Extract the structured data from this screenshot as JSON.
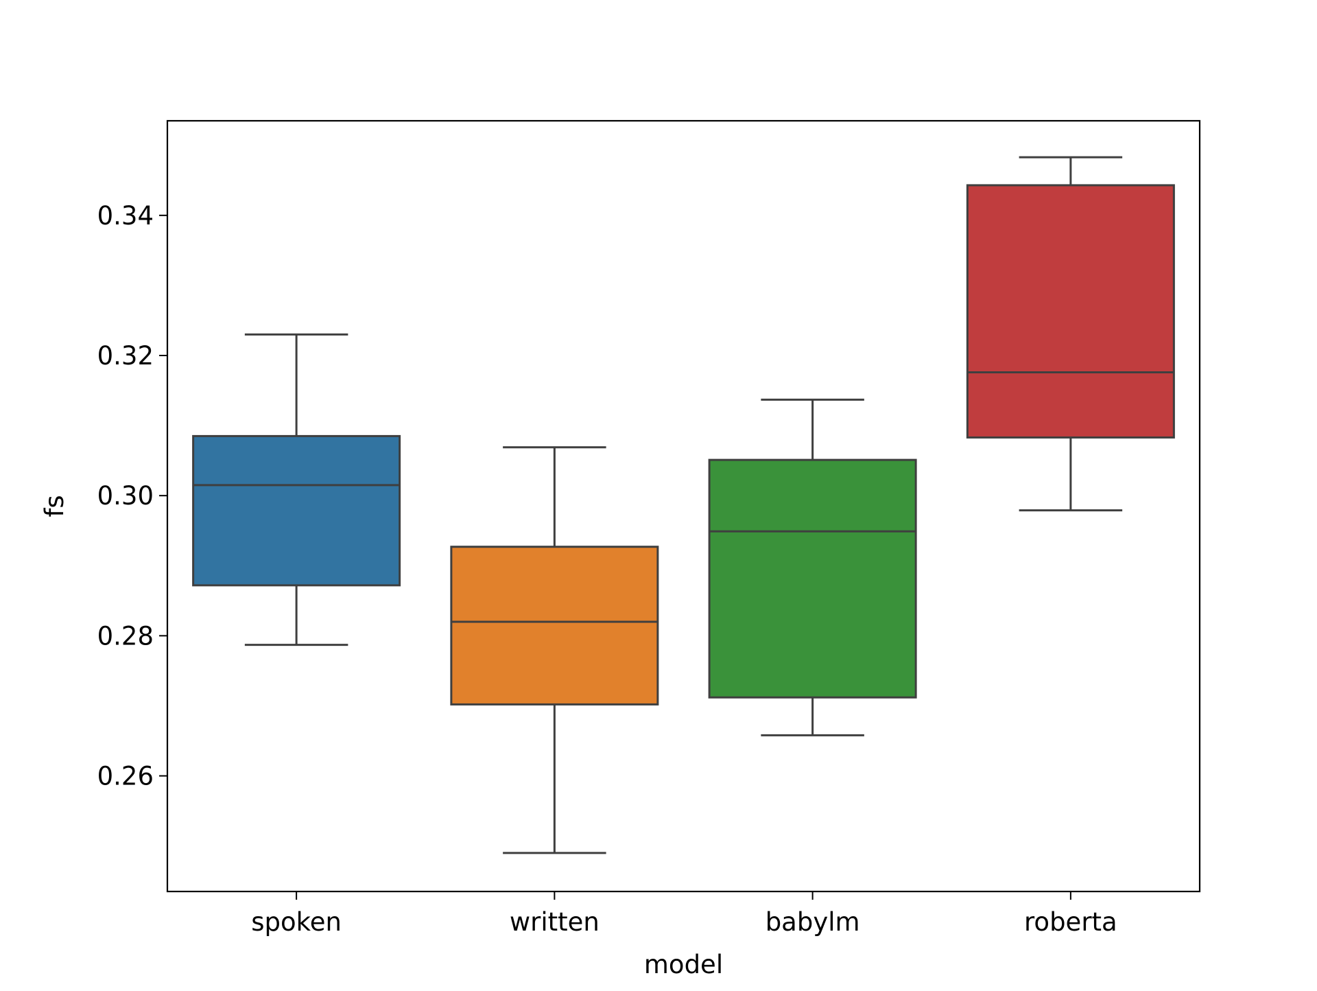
{
  "chart_data": {
    "type": "box",
    "xlabel": "model",
    "ylabel": "fs",
    "ylim": [
      0.2435,
      0.3535
    ],
    "yticks": [
      0.26,
      0.28,
      0.3,
      0.32,
      0.34
    ],
    "ytick_labels": [
      "0.26",
      "0.28",
      "0.30",
      "0.32",
      "0.34"
    ],
    "grid": false,
    "categories": [
      "spoken",
      "written",
      "babylm",
      "roberta"
    ],
    "colors": [
      "#3274a1",
      "#e1812c",
      "#3a923a",
      "#c03d3e"
    ],
    "edge_color": "#3f3f3f",
    "boxes": [
      {
        "category": "spoken",
        "whisker_low": 0.2787,
        "q1": 0.2872,
        "median": 0.3015,
        "q3": 0.3085,
        "whisker_high": 0.323
      },
      {
        "category": "written",
        "whisker_low": 0.249,
        "q1": 0.2702,
        "median": 0.282,
        "q3": 0.2927,
        "whisker_high": 0.3069
      },
      {
        "category": "babylm",
        "whisker_low": 0.2658,
        "q1": 0.2712,
        "median": 0.2949,
        "q3": 0.3051,
        "whisker_high": 0.3137
      },
      {
        "category": "roberta",
        "whisker_low": 0.2979,
        "q1": 0.3083,
        "median": 0.3176,
        "q3": 0.3443,
        "whisker_high": 0.3483
      }
    ]
  }
}
